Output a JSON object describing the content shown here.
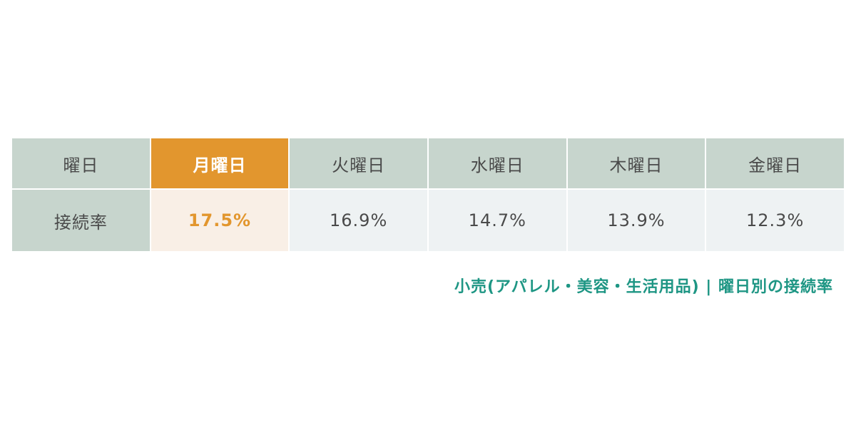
{
  "chart_data": {
    "type": "table",
    "columns": [
      "曜日",
      "月曜日",
      "火曜日",
      "水曜日",
      "木曜日",
      "金曜日"
    ],
    "row_label": "接続率",
    "values": [
      "17.5%",
      "16.9%",
      "14.7%",
      "13.9%",
      "12.3%"
    ],
    "numeric_values": [
      17.5,
      16.9,
      14.7,
      13.9,
      12.3
    ],
    "highlight_index": 0,
    "caption": "小売(アパレル・美容・生活用品) | 曜日別の接続率"
  },
  "colors": {
    "header_bg": "#c7d5cd",
    "cell_bg": "#eef2f3",
    "highlight": "#e2962e",
    "highlight_cell_bg": "#f9efe6",
    "caption": "#1e9684",
    "text": "#4a4a4a"
  }
}
